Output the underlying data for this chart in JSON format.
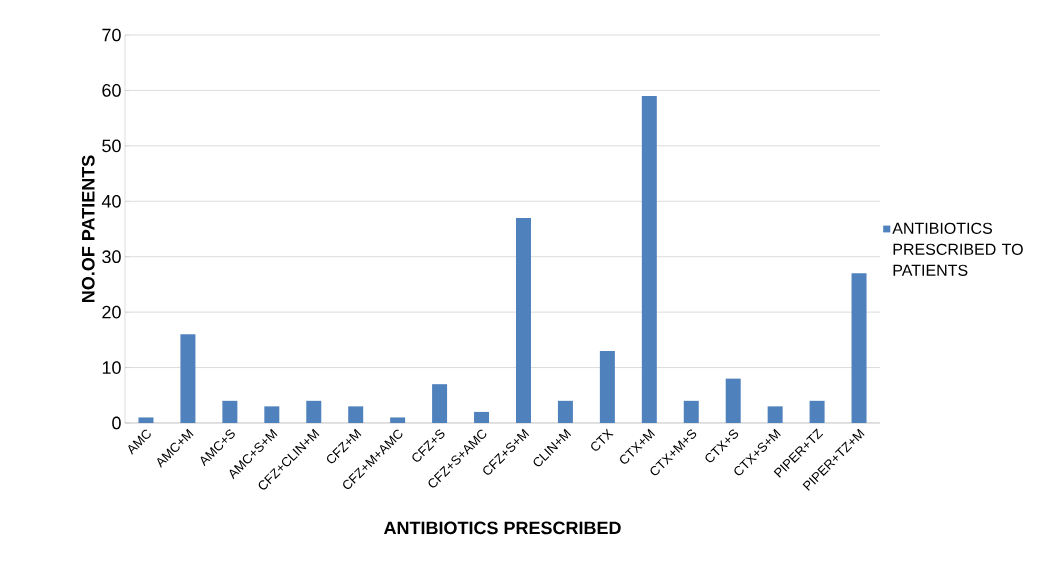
{
  "chart_data": {
    "type": "bar",
    "xlabel": "ANTIBIOTICS PRESCRIBED",
    "ylabel": "NO.OF PATIENTS",
    "categories": [
      "AMC",
      "AMC+M",
      "AMC+S",
      "AMC+S+M",
      "CFZ+CLIN+M",
      "CFZ+M",
      "CFZ+M+AMC",
      "CFZ+S",
      "CFZ+S+AMC",
      "CFZ+S+M",
      "CLIN+M",
      "CTX",
      "CTX+M",
      "CTX+M+S",
      "CTX+S",
      "CTX+S+M",
      "PIPER+TZ",
      "PIPER+TZ+M"
    ],
    "series": [
      {
        "name": "ANTIBIOTICS PRESCRIBED TO PATIENTS",
        "color": "#4f81bd",
        "values": [
          1,
          16,
          4,
          3,
          4,
          3,
          1,
          7,
          2,
          37,
          4,
          13,
          59,
          4,
          8,
          3,
          4,
          27
        ]
      }
    ],
    "ylim": [
      0,
      70
    ],
    "yticks": [
      0,
      10,
      20,
      30,
      40,
      50,
      60,
      70
    ],
    "grid": "y",
    "legend": "right"
  }
}
